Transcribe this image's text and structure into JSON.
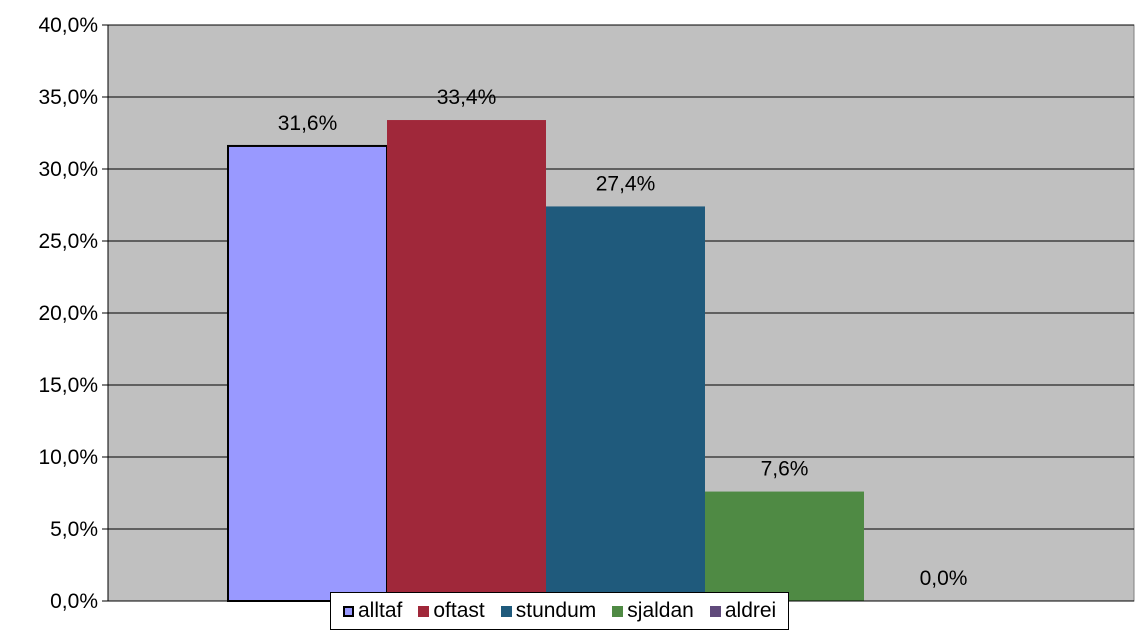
{
  "chart_data": {
    "type": "bar",
    "title": "",
    "xlabel": "",
    "ylabel": "",
    "ylim": [
      0,
      40
    ],
    "yticks": [
      "0,0%",
      "5,0%",
      "10,0%",
      "15,0%",
      "20,0%",
      "25,0%",
      "30,0%",
      "35,0%",
      "40,0%"
    ],
    "grid": true,
    "legend_position": "bottom",
    "series": [
      {
        "name": "alltaf",
        "value": 31.6,
        "label": "31,6%",
        "color": "#9999ff"
      },
      {
        "name": "oftast",
        "value": 33.4,
        "label": "33,4%",
        "color": "#a0283a"
      },
      {
        "name": "stundum",
        "value": 27.4,
        "label": "27,4%",
        "color": "#1f5a7c"
      },
      {
        "name": "sjaldan",
        "value": 7.6,
        "label": "7,6%",
        "color": "#4f8a44"
      },
      {
        "name": "aldrei",
        "value": 0.0,
        "label": "0,0%",
        "color": "#604a7b"
      }
    ],
    "plot_background": "#c0c0c0"
  }
}
